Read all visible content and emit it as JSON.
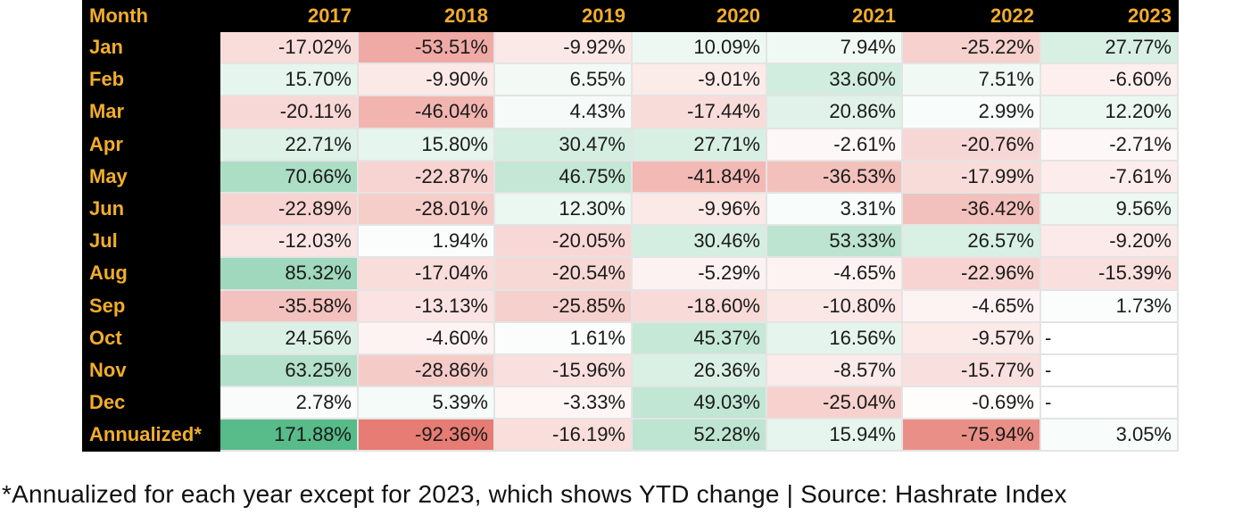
{
  "table": {
    "header": [
      "Month",
      "2017",
      "2018",
      "2019",
      "2020",
      "2021",
      "2022",
      "2023"
    ],
    "rows": [
      {
        "label": "Jan",
        "values": [
          "-17.02%",
          "-53.51%",
          "-9.92%",
          "10.09%",
          "7.94%",
          "-25.22%",
          "27.77%"
        ]
      },
      {
        "label": "Feb",
        "values": [
          "15.70%",
          "-9.90%",
          "6.55%",
          "-9.01%",
          "33.60%",
          "7.51%",
          "-6.60%"
        ]
      },
      {
        "label": "Mar",
        "values": [
          "-20.11%",
          "-46.04%",
          "4.43%",
          "-17.44%",
          "20.86%",
          "2.99%",
          "12.20%"
        ]
      },
      {
        "label": "Apr",
        "values": [
          "22.71%",
          "15.80%",
          "30.47%",
          "27.71%",
          "-2.61%",
          "-20.76%",
          "-2.71%"
        ]
      },
      {
        "label": "May",
        "values": [
          "70.66%",
          "-22.87%",
          "46.75%",
          "-41.84%",
          "-36.53%",
          "-17.99%",
          "-7.61%"
        ]
      },
      {
        "label": "Jun",
        "values": [
          "-22.89%",
          "-28.01%",
          "12.30%",
          "-9.96%",
          "3.31%",
          "-36.42%",
          "9.56%"
        ]
      },
      {
        "label": "Jul",
        "values": [
          "-12.03%",
          "1.94%",
          "-20.05%",
          "30.46%",
          "53.33%",
          "26.57%",
          "-9.20%"
        ]
      },
      {
        "label": "Aug",
        "values": [
          "85.32%",
          "-17.04%",
          "-20.54%",
          "-5.29%",
          "-4.65%",
          "-22.96%",
          "-15.39%"
        ]
      },
      {
        "label": "Sep",
        "values": [
          "-35.58%",
          "-13.13%",
          "-25.85%",
          "-18.60%",
          "-10.80%",
          "-4.65%",
          "1.73%"
        ]
      },
      {
        "label": "Oct",
        "values": [
          "24.56%",
          "-4.60%",
          "1.61%",
          "45.37%",
          "16.56%",
          "-9.57%",
          "-"
        ]
      },
      {
        "label": "Nov",
        "values": [
          "63.25%",
          "-28.86%",
          "-15.96%",
          "26.36%",
          "-8.57%",
          "-15.77%",
          "-"
        ]
      },
      {
        "label": "Dec",
        "values": [
          "2.78%",
          "5.39%",
          "-3.33%",
          "49.03%",
          "-25.04%",
          "-0.69%",
          "-"
        ]
      },
      {
        "label": "Annualized*",
        "values": [
          "171.88%",
          "-92.36%",
          "-16.19%",
          "52.28%",
          "15.94%",
          "-75.94%",
          "3.05%"
        ]
      }
    ]
  },
  "colors": {
    "positive": "#57bb8a",
    "negative": "#e67c73",
    "neutral": "#ffffff",
    "header_text": "#f1ad2b",
    "header_bg": "#000000"
  },
  "footnote": "*Annualized for each year except for 2023, which shows YTD change | Source: Hashrate Index"
}
